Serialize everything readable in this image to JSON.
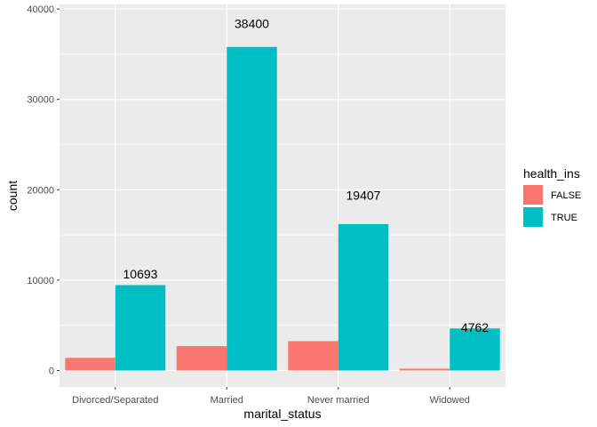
{
  "chart_data": {
    "type": "bar",
    "xlabel": "marital_status",
    "ylabel": "count",
    "ylim": [
      -1500,
      40000
    ],
    "yticks": [
      0,
      10000,
      20000,
      30000,
      40000
    ],
    "grid": true,
    "legend_position": "right",
    "legend_title": "health_ins",
    "categories": [
      "Divorced/Separated",
      "Married",
      "Never married",
      "Widowed"
    ],
    "series": [
      {
        "name": "FALSE",
        "color": "#F8766D",
        "values": [
          1400,
          2700,
          3250,
          200
        ]
      },
      {
        "name": "TRUE",
        "color": "#00BFC4",
        "values": [
          9450,
          35800,
          16200,
          4650
        ]
      }
    ],
    "annotations": [
      {
        "category": "Divorced/Separated",
        "text": "10693",
        "y": 10693
      },
      {
        "category": "Married",
        "text": "38400",
        "y": 38400
      },
      {
        "category": "Never married",
        "text": "19407",
        "y": 19407
      },
      {
        "category": "Widowed",
        "text": "4762",
        "y": 4762
      }
    ]
  }
}
